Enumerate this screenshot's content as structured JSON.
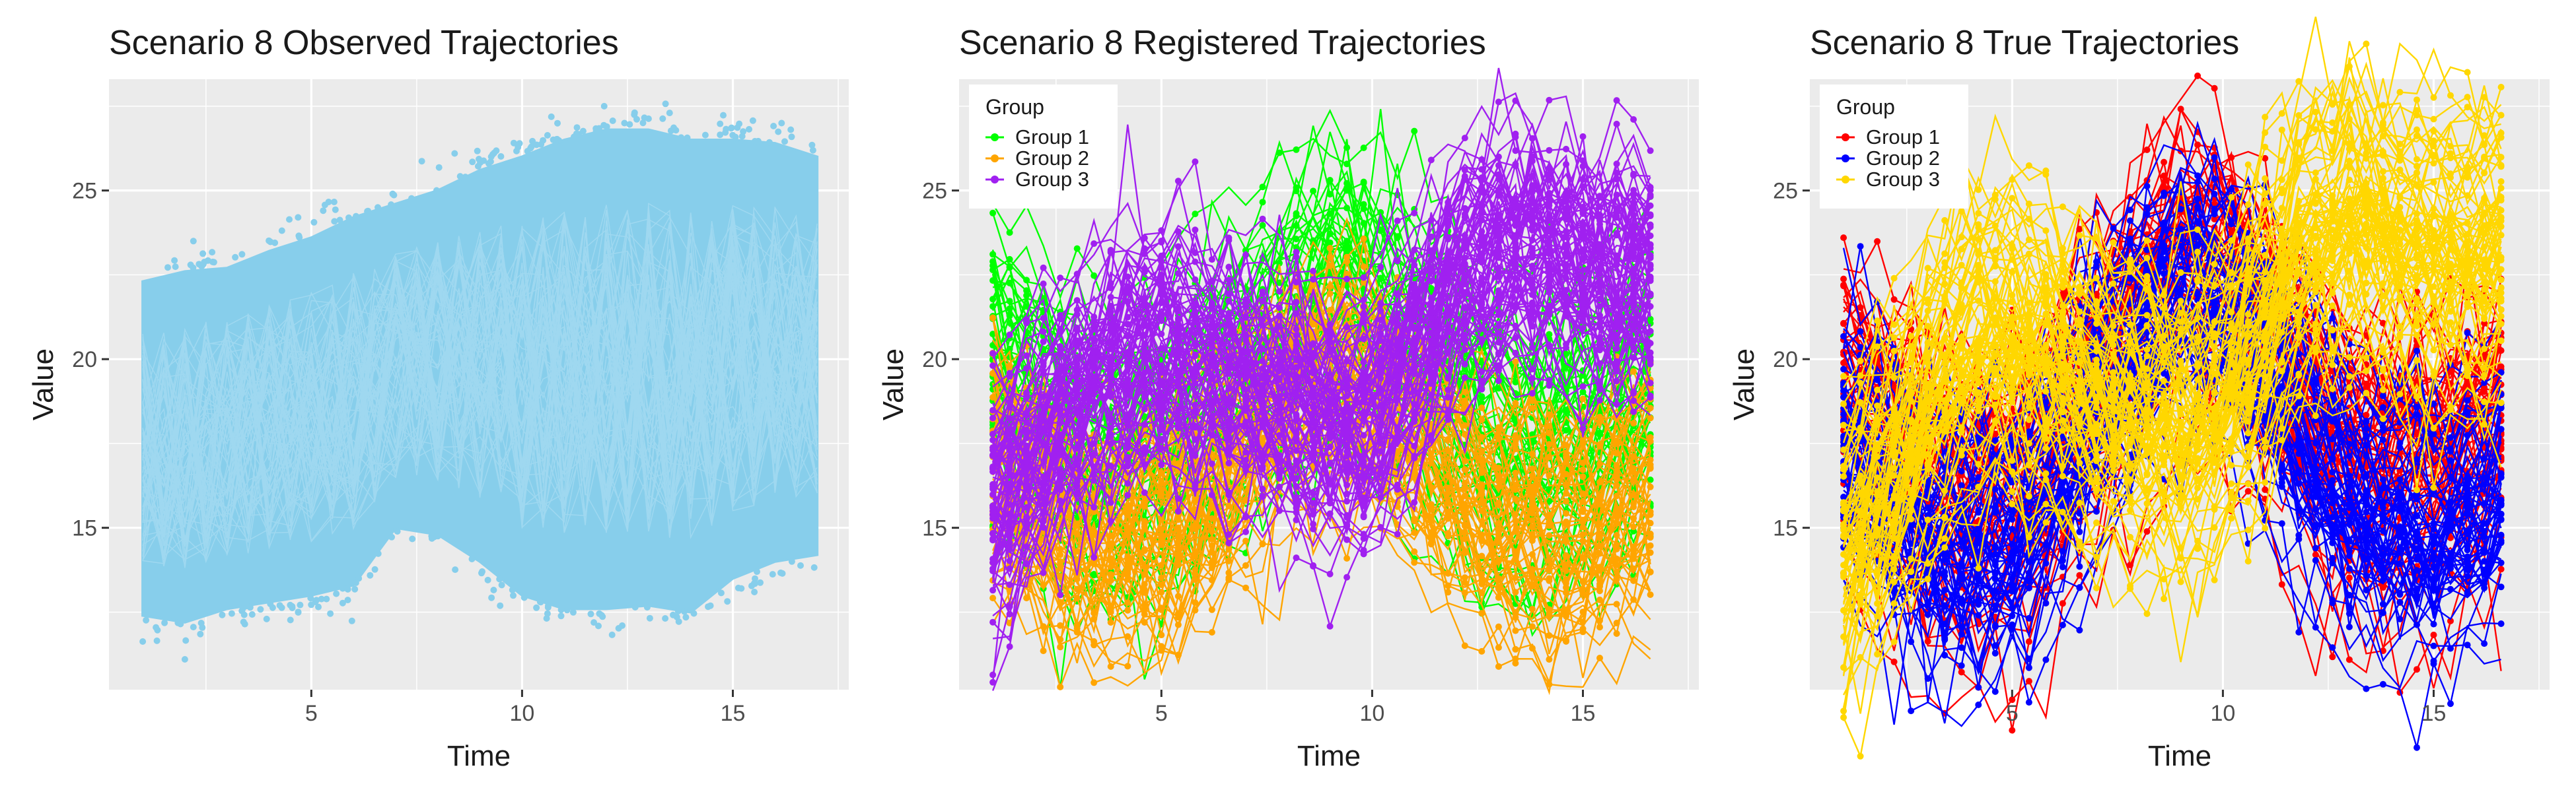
{
  "chart_data": [
    {
      "type": "line",
      "title": "Scenario 8 Observed Trajectories",
      "xlabel": "Time",
      "ylabel": "Value",
      "xlim": [
        0.2,
        17.75
      ],
      "ylim": [
        10.2,
        28.3
      ],
      "x_ticks": [
        5,
        10,
        15
      ],
      "y_ticks": [
        15,
        20,
        25
      ],
      "grid": true,
      "legend": null,
      "series": [
        {
          "color": "#87CEEB",
          "x": [
            1,
            2,
            3,
            4,
            5,
            6,
            7,
            8,
            9,
            10,
            11,
            12,
            13,
            14,
            15,
            16,
            17
          ],
          "envelope_low": [
            12.4,
            12.2,
            12.6,
            12.8,
            13.0,
            13.3,
            15.0,
            14.8,
            14.0,
            13.0,
            12.6,
            12.6,
            12.7,
            12.5,
            13.5,
            14.0,
            14.2
          ],
          "envelope_high": [
            22.3,
            22.6,
            22.7,
            23.2,
            23.6,
            24.2,
            24.6,
            25.0,
            25.6,
            26.0,
            26.5,
            26.8,
            26.8,
            26.5,
            26.5,
            26.4,
            26.0
          ],
          "extremes": {
            "min": [
              2,
              11.1
            ],
            "max": [
              13.5,
              27.3
            ]
          }
        }
      ]
    },
    {
      "type": "line",
      "title": "Scenario 8 Registered Trajectories",
      "xlabel": "Time",
      "ylabel": "Value",
      "xlim": [
        0.2,
        17.75
      ],
      "ylim": [
        10.2,
        28.3
      ],
      "x_ticks": [
        5,
        10,
        15
      ],
      "y_ticks": [
        15,
        20,
        25
      ],
      "grid": true,
      "legend_title": "Group",
      "legend_position": "top-left",
      "series": [
        {
          "name": "Group 1",
          "color": "#00FF00",
          "x": [
            1,
            2,
            3,
            4,
            5,
            6,
            7,
            8,
            9,
            10,
            11,
            12,
            13,
            14,
            15,
            16,
            17
          ],
          "center": [
            20.2,
            18.7,
            17.4,
            17.0,
            17.6,
            18.6,
            19.8,
            21.2,
            22.2,
            21.4,
            20.2,
            18.8,
            17.5,
            17.4,
            17.9,
            18.6,
            19.3
          ]
        },
        {
          "name": "Group 2",
          "color": "#FFA500",
          "x": [
            1,
            2,
            3,
            4,
            5,
            6,
            7,
            8,
            9,
            10,
            11,
            12,
            13,
            14,
            15,
            16,
            17
          ],
          "center": [
            16.6,
            15.2,
            14.4,
            14.2,
            14.6,
            15.5,
            17.0,
            18.5,
            19.2,
            18.6,
            17.2,
            15.8,
            14.8,
            14.4,
            14.5,
            15.2,
            16.2
          ]
        },
        {
          "name": "Group 3",
          "color": "#A020F0",
          "x": [
            1,
            2,
            3,
            4,
            5,
            6,
            7,
            8,
            9,
            10,
            11,
            12,
            13,
            14,
            15,
            16,
            17
          ],
          "center": [
            15.8,
            17.6,
            19.2,
            20.2,
            20.4,
            20.2,
            19.6,
            19.0,
            18.4,
            18.6,
            20.4,
            22.6,
            23.6,
            23.4,
            22.9,
            22.6,
            23.0
          ]
        }
      ]
    },
    {
      "type": "line",
      "title": "Scenario 8 True Trajectories",
      "xlabel": "Time",
      "ylabel": "Value",
      "xlim": [
        0.2,
        17.75
      ],
      "ylim": [
        10.2,
        28.3
      ],
      "x_ticks": [
        5,
        10,
        15
      ],
      "y_ticks": [
        15,
        20,
        25
      ],
      "grid": true,
      "legend_title": "Group",
      "legend_position": "top-left",
      "series": [
        {
          "name": "Group 1",
          "color": "#FF0000",
          "x": [
            1,
            2,
            3,
            4,
            5,
            6,
            7,
            8,
            9,
            10,
            11,
            12,
            13,
            14,
            15,
            16,
            17
          ],
          "center": [
            19.6,
            18.4,
            17.0,
            16.0,
            16.4,
            18.0,
            20.0,
            22.0,
            23.4,
            23.0,
            21.2,
            19.0,
            17.6,
            17.4,
            17.6,
            18.2,
            19.0
          ]
        },
        {
          "name": "Group 2",
          "color": "#0000FF",
          "x": [
            1,
            2,
            3,
            4,
            5,
            6,
            7,
            8,
            9,
            10,
            11,
            12,
            13,
            14,
            15,
            16,
            17
          ],
          "center": [
            16.8,
            15.4,
            14.2,
            14.0,
            14.4,
            16.0,
            18.2,
            20.2,
            21.6,
            21.0,
            19.2,
            17.0,
            15.4,
            14.6,
            14.4,
            15.0,
            16.2
          ]
        },
        {
          "name": "Group 3",
          "color": "#FFD700",
          "x": [
            1,
            2,
            3,
            4,
            5,
            6,
            7,
            8,
            9,
            10,
            11,
            12,
            13,
            14,
            15,
            16,
            17
          ],
          "center": [
            14.2,
            16.2,
            18.8,
            20.6,
            20.8,
            20.0,
            19.0,
            18.4,
            18.0,
            18.8,
            21.2,
            23.6,
            24.2,
            23.6,
            23.2,
            23.2,
            23.4
          ]
        }
      ]
    }
  ]
}
